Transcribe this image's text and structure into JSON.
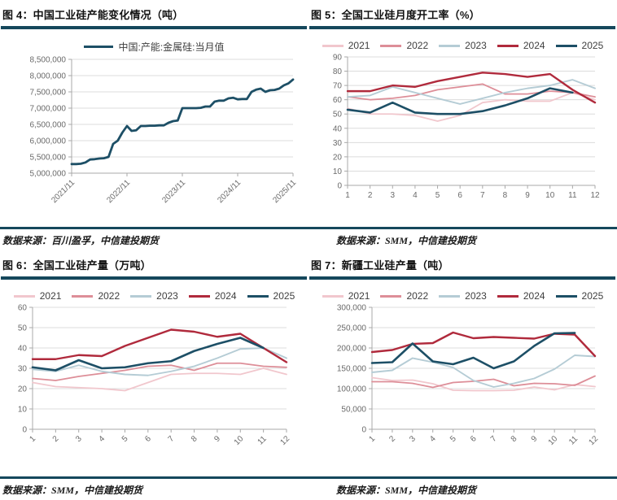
{
  "page": {
    "background": "#ffffff"
  },
  "colors": {
    "accent_teal": "#15485c",
    "grid": "#dcdcdc",
    "axis": "#a8a8a8",
    "tick_text": "#6a6a6a",
    "series_2021": "#f1c7cd",
    "series_2022": "#dd8e98",
    "series_2023": "#b5ccd5",
    "series_2024": "#b02a3c",
    "series_2025": "#1d4f66"
  },
  "panels": [
    {
      "title": "图 4：中国工业硅产能变化情况（吨）",
      "source": "数据来源：百川盈孚，中信建投期货"
    },
    {
      "title": "图 5：全国工业硅月度开工率（%）",
      "source": "数据来源：SMM，中信建投期货"
    },
    {
      "title": "图 6：全国工业硅产量（万吨）",
      "source": "数据来源：SMM，中信建投期货"
    },
    {
      "title": "图 7：新疆工业硅产量（吨）",
      "source": "数据来源：SMM，中信建投期货"
    }
  ],
  "chart_data": [
    {
      "type": "line",
      "title": "图 4：中国工业硅产能变化情况（吨）",
      "legend_position": "top",
      "ylim": [
        5000000,
        8500000
      ],
      "ystep": 500000,
      "y_format": "comma",
      "tick_idx": [
        0,
        12,
        24,
        36,
        48
      ],
      "tick_labels": [
        "2021/11",
        "2022/11",
        "2023/11",
        "2024/11",
        "2025/11"
      ],
      "rotate_x_labels": true,
      "series": [
        {
          "name": "中国:产能:金属硅:当月值",
          "color": "#1d4f66",
          "values": [
            5280000,
            5280000,
            5290000,
            5330000,
            5420000,
            5430000,
            5450000,
            5460000,
            5500000,
            5900000,
            6000000,
            6250000,
            6450000,
            6300000,
            6320000,
            6450000,
            6450000,
            6460000,
            6460000,
            6470000,
            6470000,
            6550000,
            6600000,
            6620000,
            7000000,
            7000000,
            7000000,
            7000000,
            7010000,
            7050000,
            7050000,
            7200000,
            7230000,
            7230000,
            7300000,
            7320000,
            7270000,
            7280000,
            7280000,
            7500000,
            7570000,
            7600000,
            7500000,
            7550000,
            7560000,
            7600000,
            7700000,
            7760000,
            7880000
          ]
        }
      ]
    },
    {
      "type": "line",
      "title": "图 5：全国工业硅月度开工率（%）",
      "legend_position": "top",
      "categories": [
        "1",
        "2",
        "3",
        "4",
        "5",
        "6",
        "7",
        "8",
        "9",
        "10",
        "11",
        "12"
      ],
      "ylim": [
        0,
        90
      ],
      "ystep": 10,
      "y_format": "plain",
      "rotate_x_labels": false,
      "series": [
        {
          "name": "2021",
          "color": "#f1c7cd",
          "values": [
            54,
            50,
            50,
            49,
            45,
            49,
            58,
            60,
            59,
            59,
            65,
            60
          ]
        },
        {
          "name": "2022",
          "color": "#dd8e98",
          "values": [
            62,
            60,
            61,
            63,
            67,
            69,
            71,
            64,
            64,
            66,
            65,
            62
          ]
        },
        {
          "name": "2023",
          "color": "#b5ccd5",
          "values": [
            62,
            63,
            69,
            65,
            61,
            57,
            61,
            65,
            68,
            70,
            74,
            68
          ]
        },
        {
          "name": "2024",
          "color": "#b02a3c",
          "values": [
            66,
            66,
            70,
            69,
            73,
            76,
            79,
            78,
            76,
            78,
            67,
            58
          ]
        },
        {
          "name": "2025",
          "color": "#1d4f66",
          "values": [
            53,
            51,
            58,
            51,
            50,
            50,
            52,
            56,
            61,
            68,
            65,
            null
          ]
        }
      ]
    },
    {
      "type": "line",
      "title": "图 6：全国工业硅产量（万吨）",
      "legend_position": "top",
      "categories": [
        "1",
        "2",
        "3",
        "4",
        "5",
        "6",
        "7",
        "8",
        "9",
        "10",
        "11",
        "12"
      ],
      "ylim": [
        0,
        60
      ],
      "ystep": 10,
      "y_format": "plain",
      "rotate_x_labels": true,
      "series": [
        {
          "name": "2021",
          "color": "#f1c7cd",
          "values": [
            23,
            21,
            20.5,
            20,
            19,
            23,
            27,
            27.5,
            27.5,
            27,
            30,
            27
          ]
        },
        {
          "name": "2022",
          "color": "#dd8e98",
          "values": [
            25,
            24,
            26,
            27.5,
            29,
            31,
            31.5,
            29,
            32.5,
            32.5,
            31,
            30.5
          ]
        },
        {
          "name": "2023",
          "color": "#b5ccd5",
          "values": [
            29.5,
            28.5,
            31.5,
            28.5,
            27,
            26.5,
            28.5,
            31,
            35,
            39.5,
            40,
            35
          ]
        },
        {
          "name": "2024",
          "color": "#b02a3c",
          "values": [
            34.5,
            34.5,
            36.5,
            36,
            41,
            45,
            49,
            48,
            45.5,
            47,
            40,
            33
          ]
        },
        {
          "name": "2025",
          "color": "#1d4f66",
          "values": [
            30.5,
            29,
            34,
            30,
            30.5,
            32.5,
            33.5,
            38.5,
            42,
            45,
            40,
            null
          ]
        }
      ]
    },
    {
      "type": "line",
      "title": "图 7：新疆工业硅产量（吨）",
      "legend_position": "top",
      "categories": [
        "1",
        "2",
        "3",
        "4",
        "5",
        "6",
        "7",
        "8",
        "9",
        "10",
        "11",
        "12"
      ],
      "ylim": [
        0,
        300000
      ],
      "ystep": 50000,
      "y_format": "comma",
      "rotate_x_labels": true,
      "series": [
        {
          "name": "2021",
          "color": "#f1c7cd",
          "values": [
            127000,
            120000,
            121000,
            112000,
            96000,
            95000,
            95000,
            96000,
            104000,
            97000,
            110000,
            105000
          ]
        },
        {
          "name": "2022",
          "color": "#dd8e98",
          "values": [
            117000,
            117000,
            113000,
            103000,
            115000,
            118000,
            123000,
            107000,
            113000,
            112000,
            108000,
            131000
          ]
        },
        {
          "name": "2023",
          "color": "#b5ccd5",
          "values": [
            140000,
            145000,
            175000,
            165000,
            152000,
            120000,
            104000,
            113000,
            125000,
            148000,
            182000,
            179000
          ]
        },
        {
          "name": "2024",
          "color": "#b02a3c",
          "values": [
            190000,
            195000,
            210000,
            212000,
            238000,
            224000,
            227000,
            225000,
            223000,
            235000,
            233000,
            180000
          ]
        },
        {
          "name": "2025",
          "color": "#1d4f66",
          "values": [
            163000,
            165000,
            211000,
            167000,
            160000,
            176000,
            150000,
            167000,
            205000,
            236000,
            237000,
            null
          ]
        }
      ]
    }
  ]
}
